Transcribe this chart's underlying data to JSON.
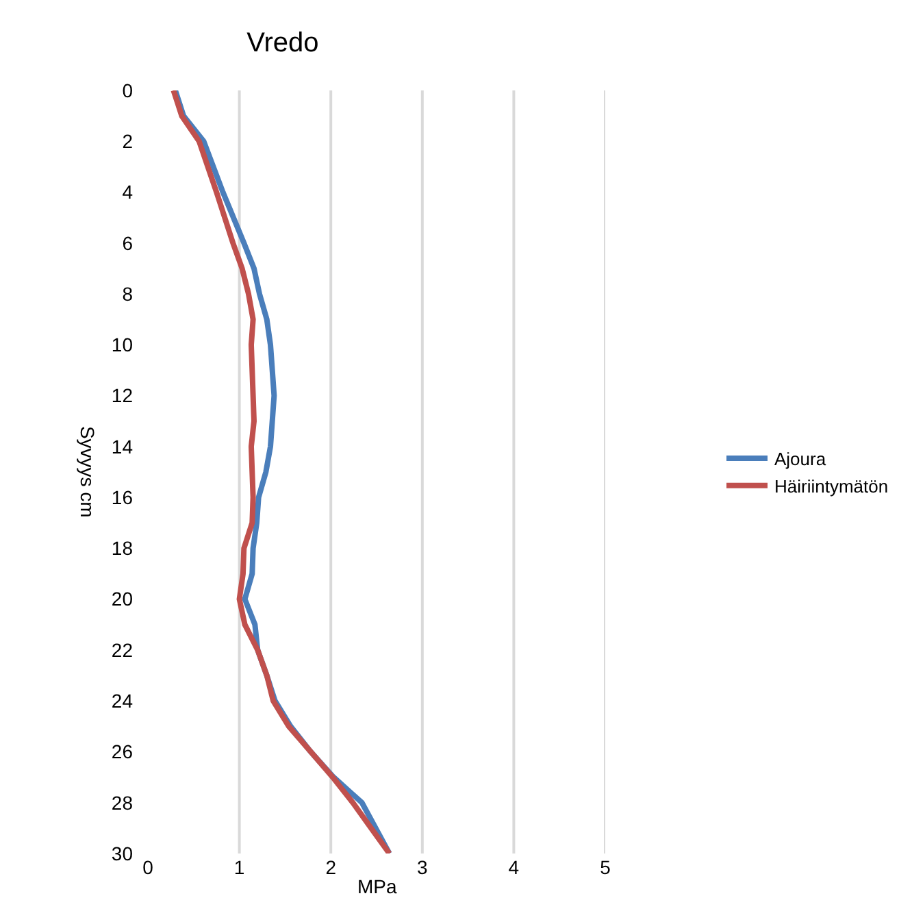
{
  "chart_data": {
    "type": "line",
    "title": "Vredo",
    "xlabel": "MPa",
    "ylabel": "Syvyys cm",
    "series": [
      {
        "name": "Ajoura",
        "color": "#4a7ebb",
        "x": [
          0.3,
          0.39,
          0.61,
          0.82,
          1.05,
          1.16,
          1.22,
          1.3,
          1.34,
          1.38,
          1.34,
          1.29,
          1.21,
          1.19,
          1.15,
          1.14,
          1.06,
          1.17,
          1.2,
          1.3,
          1.39,
          1.56,
          1.78,
          2.03,
          2.34,
          2.49,
          2.64
        ],
        "values": [
          0,
          1,
          2,
          4,
          6,
          7,
          8,
          9,
          10,
          12,
          14,
          15,
          16,
          17,
          18,
          19,
          20,
          21,
          22,
          23,
          24,
          25,
          26,
          27,
          28,
          29,
          30
        ]
      },
      {
        "name": "Häiriintymätön",
        "color": "#c0504d",
        "x": [
          0.28,
          0.37,
          0.56,
          0.75,
          0.93,
          1.03,
          1.1,
          1.15,
          1.13,
          1.15,
          1.16,
          1.13,
          1.15,
          1.14,
          1.05,
          1.04,
          1.0,
          1.06,
          1.2,
          1.3,
          1.37,
          1.54,
          1.78,
          2.02,
          2.24,
          2.44,
          2.64
        ],
        "values": [
          0,
          1,
          2,
          4,
          6,
          7,
          8,
          9,
          10,
          12,
          13,
          14,
          16,
          17,
          18,
          19,
          20,
          21,
          22,
          23,
          24,
          25,
          26,
          27,
          28,
          29,
          30
        ]
      }
    ],
    "xlim": [
      0,
      5
    ],
    "xticks": [
      0,
      1,
      2,
      3,
      4,
      5
    ],
    "ylim": [
      30,
      0
    ],
    "yticks": [
      0,
      2,
      4,
      6,
      8,
      10,
      12,
      14,
      16,
      18,
      20,
      22,
      24,
      26,
      28,
      30
    ],
    "grid": "x",
    "legend": "right",
    "marker": "none",
    "line_style": "solid"
  }
}
